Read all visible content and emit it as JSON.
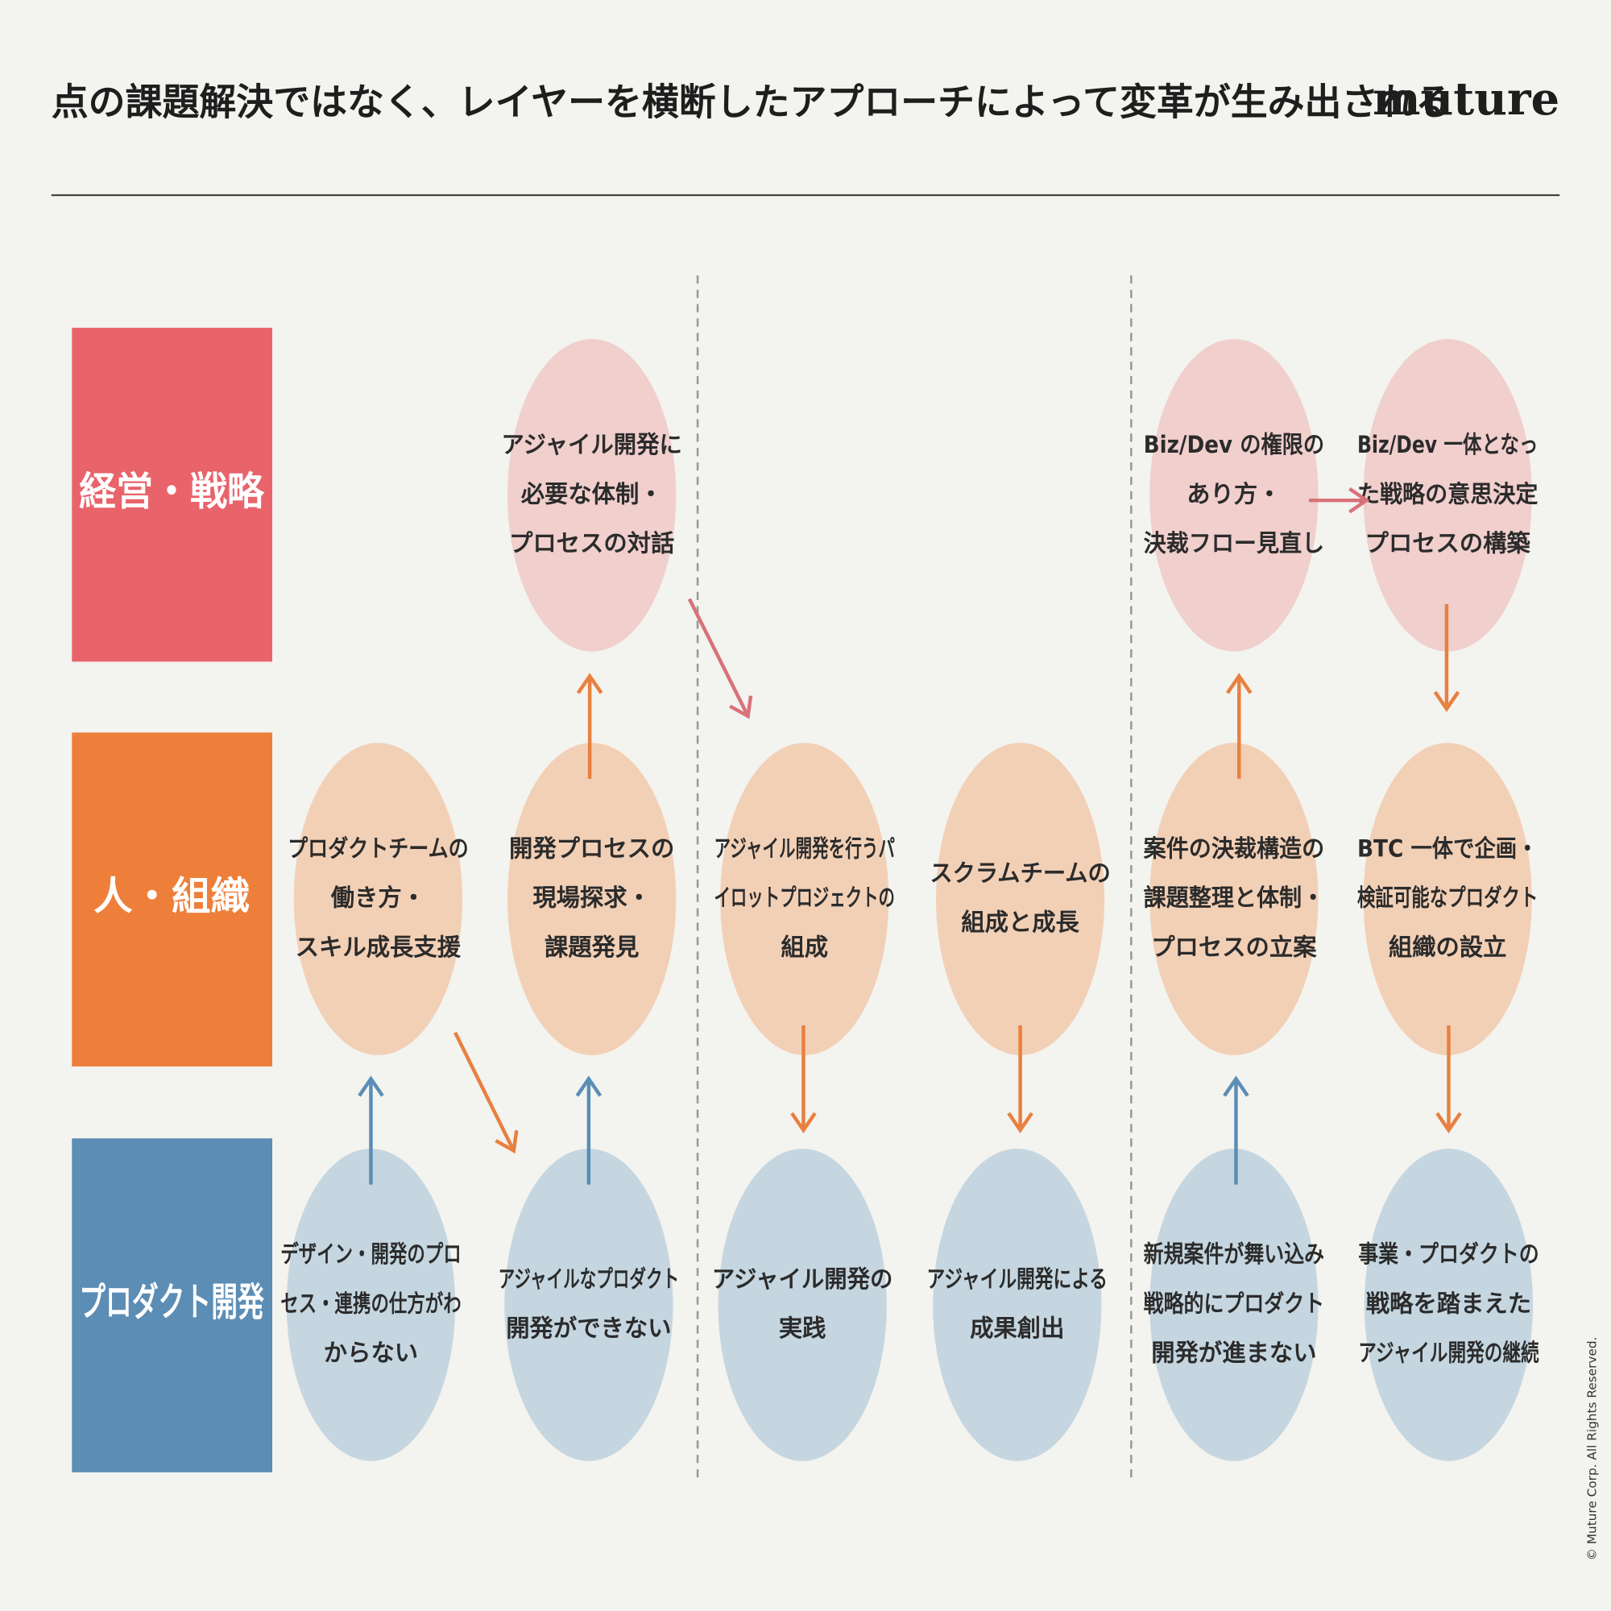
{
  "header": {
    "title": "点の課題解決ではなく、レイヤーを横断したアプローチによって変革が生み出される",
    "logo": "muture"
  },
  "rows": [
    "経営・戦略",
    "人・組織",
    "プロダクト開発"
  ],
  "nodes": [
    {
      "lines": [
        "アジャイル開発に",
        "必要な体制・",
        "プロセスの対話"
      ]
    },
    {
      "lines": [
        "Biz/Dev の権限の",
        "あり方・",
        "決裁フロー見直し"
      ]
    },
    {
      "lines": [
        "Biz/Dev 一体となっ",
        "た戦略の意思決定",
        "プロセスの構築"
      ]
    },
    {
      "lines": [
        "プロダクトチームの",
        "働き方・",
        "スキル成長支援"
      ]
    },
    {
      "lines": [
        "開発プロセスの",
        "現場探求・",
        "課題発見"
      ]
    },
    {
      "lines": [
        "アジャイル開発を行うパ",
        "イロットプロジェクトの",
        "組成"
      ]
    },
    {
      "lines": [
        "スクラムチームの",
        "組成と成長"
      ]
    },
    {
      "lines": [
        "案件の決裁構造の",
        "課題整理と体制・",
        "プロセスの立案"
      ]
    },
    {
      "lines": [
        "BTC 一体で企画・",
        "検証可能なプロダクト",
        "組織の設立"
      ]
    },
    {
      "lines": [
        "デザイン・開発のプロ",
        "セス・連携の仕方がわ",
        "からない"
      ]
    },
    {
      "lines": [
        "アジャイルなプロダクト",
        "開発ができない"
      ]
    },
    {
      "lines": [
        "アジャイル開発の",
        "実践"
      ]
    },
    {
      "lines": [
        "アジャイル開発による",
        "成果創出"
      ]
    },
    {
      "lines": [
        "新規案件が舞い込み",
        "戦略的にプロダクト",
        "開発が進まない"
      ]
    },
    {
      "lines": [
        "事業・プロダクトの",
        "戦略を踏まえた",
        "アジャイル開発の継続"
      ]
    }
  ],
  "copyright": "© Muture Corp. All Rights Reserved."
}
